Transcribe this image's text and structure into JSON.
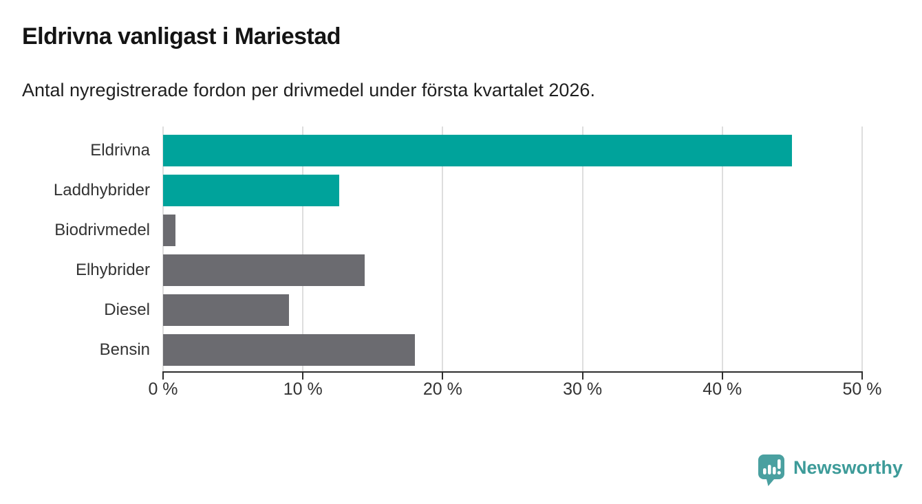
{
  "header": {
    "title": "Eldrivna vanligast i Mariestad",
    "subtitle": "Antal nyregistrerade fordon per drivmedel under första kvartalet 2026."
  },
  "chart_data": {
    "type": "bar",
    "orientation": "horizontal",
    "title": "Eldrivna vanligast i Mariestad",
    "subtitle": "Antal nyregistrerade fordon per drivmedel under första kvartalet 2026.",
    "categories": [
      "Eldrivna",
      "Laddhybrider",
      "Biodrivmedel",
      "Elhybrider",
      "Diesel",
      "Bensin"
    ],
    "values": [
      45.0,
      12.6,
      0.9,
      14.4,
      9.0,
      18.0
    ],
    "unit": "%",
    "xlim": [
      0,
      50
    ],
    "x_ticks": [
      0,
      10,
      20,
      30,
      40,
      50
    ],
    "x_tick_labels": [
      "0 %",
      "10 %",
      "20 %",
      "30 %",
      "40 %",
      "50 %"
    ],
    "grid": true,
    "legend": "none",
    "bar_colors": [
      "#00a39b",
      "#00a39b",
      "#6b6b70",
      "#6b6b70",
      "#6b6b70",
      "#6b6b70"
    ],
    "highlight_color": "#00a39b",
    "default_color": "#6b6b70",
    "grid_color": "#dedede",
    "axis_color": "#2d2d2d"
  },
  "branding": {
    "logo_text": "Newsworthy",
    "logo_color": "#3d9b99",
    "logo_icon": "bar-chart-speech-bubble-icon",
    "logo_icon_color": "#4aa0a0"
  }
}
